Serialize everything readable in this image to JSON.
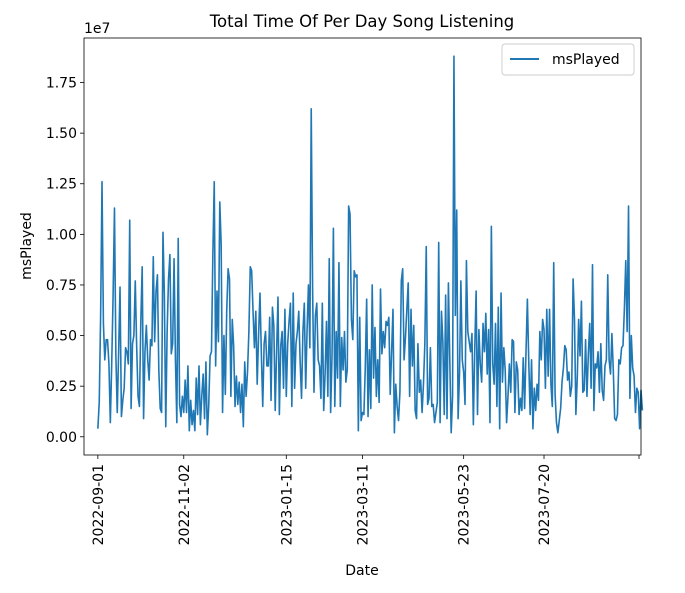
{
  "chart_data": {
    "type": "line",
    "title": "Total Time Of Per Day Song Listening",
    "xlabel": "Date",
    "ylabel": "msPlayed",
    "y_offset_label": "1e7",
    "y_scale": 10000000,
    "ylim": [
      -0.09,
      1.97
    ],
    "x_range": [
      "2022-08-22",
      "2023-09-28"
    ],
    "x_ticks": [
      "2022-09-01",
      "2022-11-02",
      "2023-01-15",
      "2023-03-11",
      "2023-05-23",
      "2023-07-20"
    ],
    "y_ticks": [
      0.0,
      0.25,
      0.5,
      0.75,
      1.0,
      1.25,
      1.5,
      1.75
    ],
    "y_tick_labels": [
      "0.00",
      "0.25",
      "0.50",
      "0.75",
      "1.00",
      "1.25",
      "1.50",
      "1.75"
    ],
    "legend_placement": "top-right",
    "grid": false,
    "series": [
      {
        "name": "msPlayed",
        "color": "#1f77b4",
        "start_date": "2022-09-01",
        "step_days": 1,
        "values": [
          0.04,
          0.17,
          0.6,
          1.26,
          0.56,
          0.38,
          0.48,
          0.48,
          0.36,
          0.07,
          0.36,
          0.7,
          1.13,
          0.4,
          0.12,
          0.42,
          0.74,
          0.1,
          0.18,
          0.24,
          0.44,
          0.42,
          0.36,
          1.07,
          0.14,
          0.46,
          0.5,
          0.77,
          0.45,
          0.2,
          0.15,
          0.57,
          0.84,
          0.09,
          0.42,
          0.55,
          0.38,
          0.28,
          0.48,
          0.45,
          0.89,
          0.47,
          0.72,
          0.8,
          0.33,
          0.14,
          0.12,
          1.01,
          0.7,
          0.05,
          0.52,
          0.78,
          0.9,
          0.41,
          0.46,
          0.88,
          0.38,
          0.07,
          0.98,
          0.16,
          0.1,
          0.2,
          0.12,
          0.28,
          0.12,
          0.35,
          0.03,
          0.18,
          0.06,
          0.13,
          0.03,
          0.29,
          0.11,
          0.35,
          0.06,
          0.2,
          0.31,
          0.09,
          0.37,
          0.01,
          0.15,
          0.4,
          0.42,
          0.9,
          1.26,
          0.35,
          0.72,
          0.47,
          1.16,
          0.95,
          0.12,
          0.5,
          0.21,
          0.62,
          0.83,
          0.78,
          0.2,
          0.58,
          0.45,
          0.15,
          0.3,
          0.16,
          0.27,
          0.12,
          0.26,
          0.05,
          0.37,
          0.2,
          0.32,
          0.52,
          0.84,
          0.82,
          0.62,
          0.44,
          0.62,
          0.26,
          0.5,
          0.71,
          0.41,
          0.15,
          0.46,
          0.52,
          0.35,
          0.35,
          0.59,
          0.18,
          0.64,
          0.55,
          0.13,
          0.42,
          0.69,
          0.11,
          0.45,
          0.52,
          0.24,
          0.63,
          0.2,
          0.46,
          0.57,
          0.66,
          0.15,
          0.71,
          0.24,
          0.46,
          0.52,
          0.62,
          0.37,
          0.19,
          0.52,
          0.66,
          0.24,
          0.53,
          0.75,
          0.44,
          1.62,
          0.72,
          0.22,
          0.6,
          0.66,
          0.38,
          0.35,
          0.19,
          0.66,
          0.13,
          0.31,
          0.57,
          0.2,
          0.88,
          0.12,
          0.4,
          1.03,
          0.15,
          0.52,
          0.29,
          0.86,
          0.15,
          0.49,
          0.33,
          0.52,
          0.27,
          0.33,
          1.14,
          1.1,
          0.58,
          0.48,
          0.82,
          0.79,
          0.8,
          0.03,
          0.59,
          0.08,
          0.12,
          0.11,
          0.34,
          0.68,
          0.1,
          0.43,
          0.14,
          0.75,
          0.29,
          0.54,
          0.2,
          0.38,
          0.17,
          0.73,
          0.41,
          0.52,
          0.44,
          0.57,
          0.55,
          0.59,
          0.21,
          0.42,
          0.63,
          0.02,
          0.26,
          0.15,
          0.08,
          0.22,
          0.77,
          0.83,
          0.38,
          0.49,
          0.63,
          0.76,
          0.2,
          0.63,
          0.35,
          0.55,
          0.13,
          0.09,
          0.46,
          0.22,
          0.28,
          0.12,
          0.26,
          0.46,
          0.94,
          0.16,
          0.19,
          0.44,
          0.15,
          0.16,
          0.07,
          0.12,
          0.17,
          0.96,
          0.07,
          0.62,
          0.47,
          0.11,
          0.7,
          0.09,
          0.76,
          0.38,
          0.02,
          0.2,
          1.88,
          0.6,
          1.12,
          0.09,
          0.31,
          0.77,
          0.38,
          0.32,
          0.16,
          0.87,
          0.52,
          0.47,
          0.42,
          0.51,
          0.06,
          0.43,
          0.72,
          0.11,
          0.53,
          0.36,
          0.27,
          0.56,
          0.42,
          0.61,
          0.31,
          0.53,
          0.07,
          1.04,
          0.36,
          0.26,
          0.56,
          0.15,
          0.64,
          0.04,
          0.71,
          0.27,
          0.44,
          0.33,
          0.07,
          0.2,
          0.36,
          0.22,
          0.48,
          0.47,
          0.12,
          0.37,
          0.33,
          0.11,
          0.19,
          0.13,
          0.39,
          0.14,
          0.42,
          0.68,
          0.37,
          0.11,
          0.38,
          0.04,
          0.24,
          0.13,
          0.26,
          0.18,
          0.52,
          0.38,
          0.58,
          0.53,
          0.24,
          0.63,
          0.3,
          0.63,
          0.26,
          0.15,
          0.86,
          0.21,
          0.07,
          0.02,
          0.08,
          0.14,
          0.27,
          0.34,
          0.45,
          0.43,
          0.28,
          0.32,
          0.2,
          0.25,
          0.78,
          0.58,
          0.11,
          0.29,
          0.58,
          0.4,
          0.67,
          0.22,
          0.23,
          0.48,
          0.2,
          0.41,
          0.56,
          0.24,
          0.85,
          0.13,
          0.36,
          0.34,
          0.42,
          0.22,
          0.46,
          0.23,
          0.18,
          0.35,
          0.38,
          0.8,
          0.38,
          0.31,
          0.51,
          0.33,
          0.09,
          0.08,
          0.11,
          0.38,
          0.36,
          0.44,
          0.45,
          0.63,
          0.87,
          0.52,
          1.14,
          0.19,
          0.5,
          0.34,
          0.3,
          0.12,
          0.24,
          0.22,
          0.04,
          0.23,
          0.13
        ]
      }
    ]
  }
}
